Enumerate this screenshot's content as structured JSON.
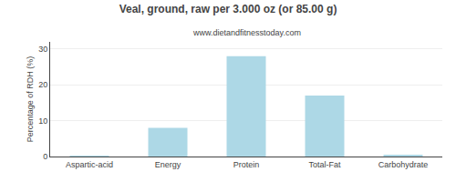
{
  "chart_data": {
    "type": "bar",
    "title": "Veal, ground, raw per 3.000 oz (or 85.00 g)",
    "subtitle": "www.dietandfitnesstoday.com",
    "categories": [
      "Aspartic-acid",
      "Energy",
      "Protein",
      "Total-Fat",
      "Carbohydrate"
    ],
    "values": [
      0.1,
      8.0,
      28.0,
      17.0,
      0.4
    ],
    "color": "#add8e6",
    "ylabel": "Percentage of RDH (%)",
    "ylim": [
      0,
      32
    ],
    "yticks": [
      0,
      10,
      20,
      30
    ],
    "grid": true
  }
}
